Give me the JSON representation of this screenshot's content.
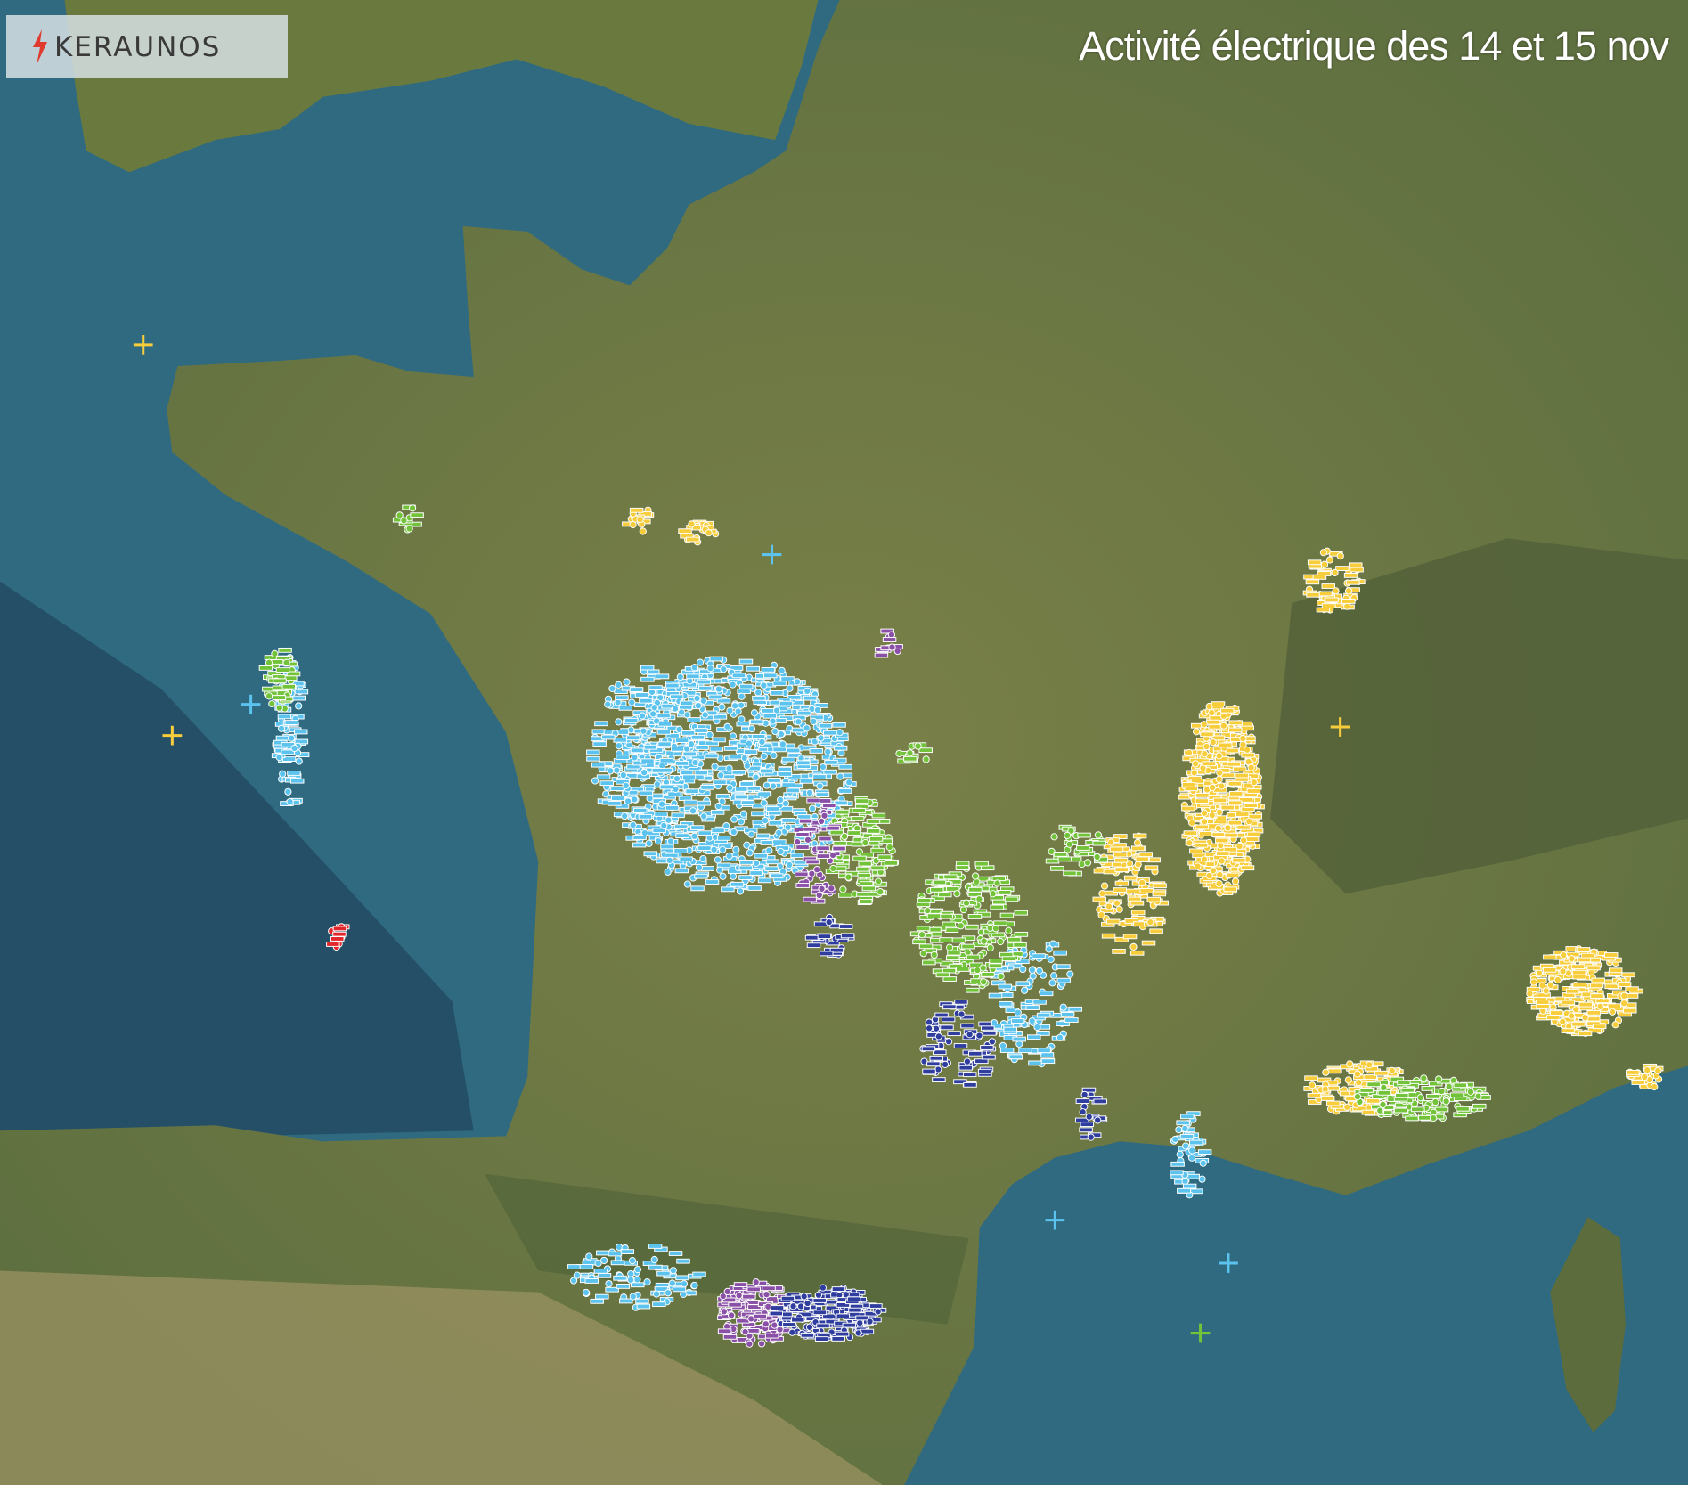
{
  "logo": {
    "text": "KERAUNOS",
    "icon": "lightning-bolt-icon",
    "icon_color": "#e03a2f"
  },
  "title": "Activité électrique des 14 et 15 nov",
  "strike_colors": {
    "yellow": "#f7cd3c",
    "light_blue": "#5bc3ee",
    "green": "#72c23a",
    "purple": "#8a4fa6",
    "dark_blue": "#2e3d9e",
    "red": "#e3262b"
  },
  "map_colors": {
    "sea": "#2f6a80",
    "deep_sea": "#234f68",
    "land": "#6b7a44",
    "mountains": "#55603a"
  }
}
